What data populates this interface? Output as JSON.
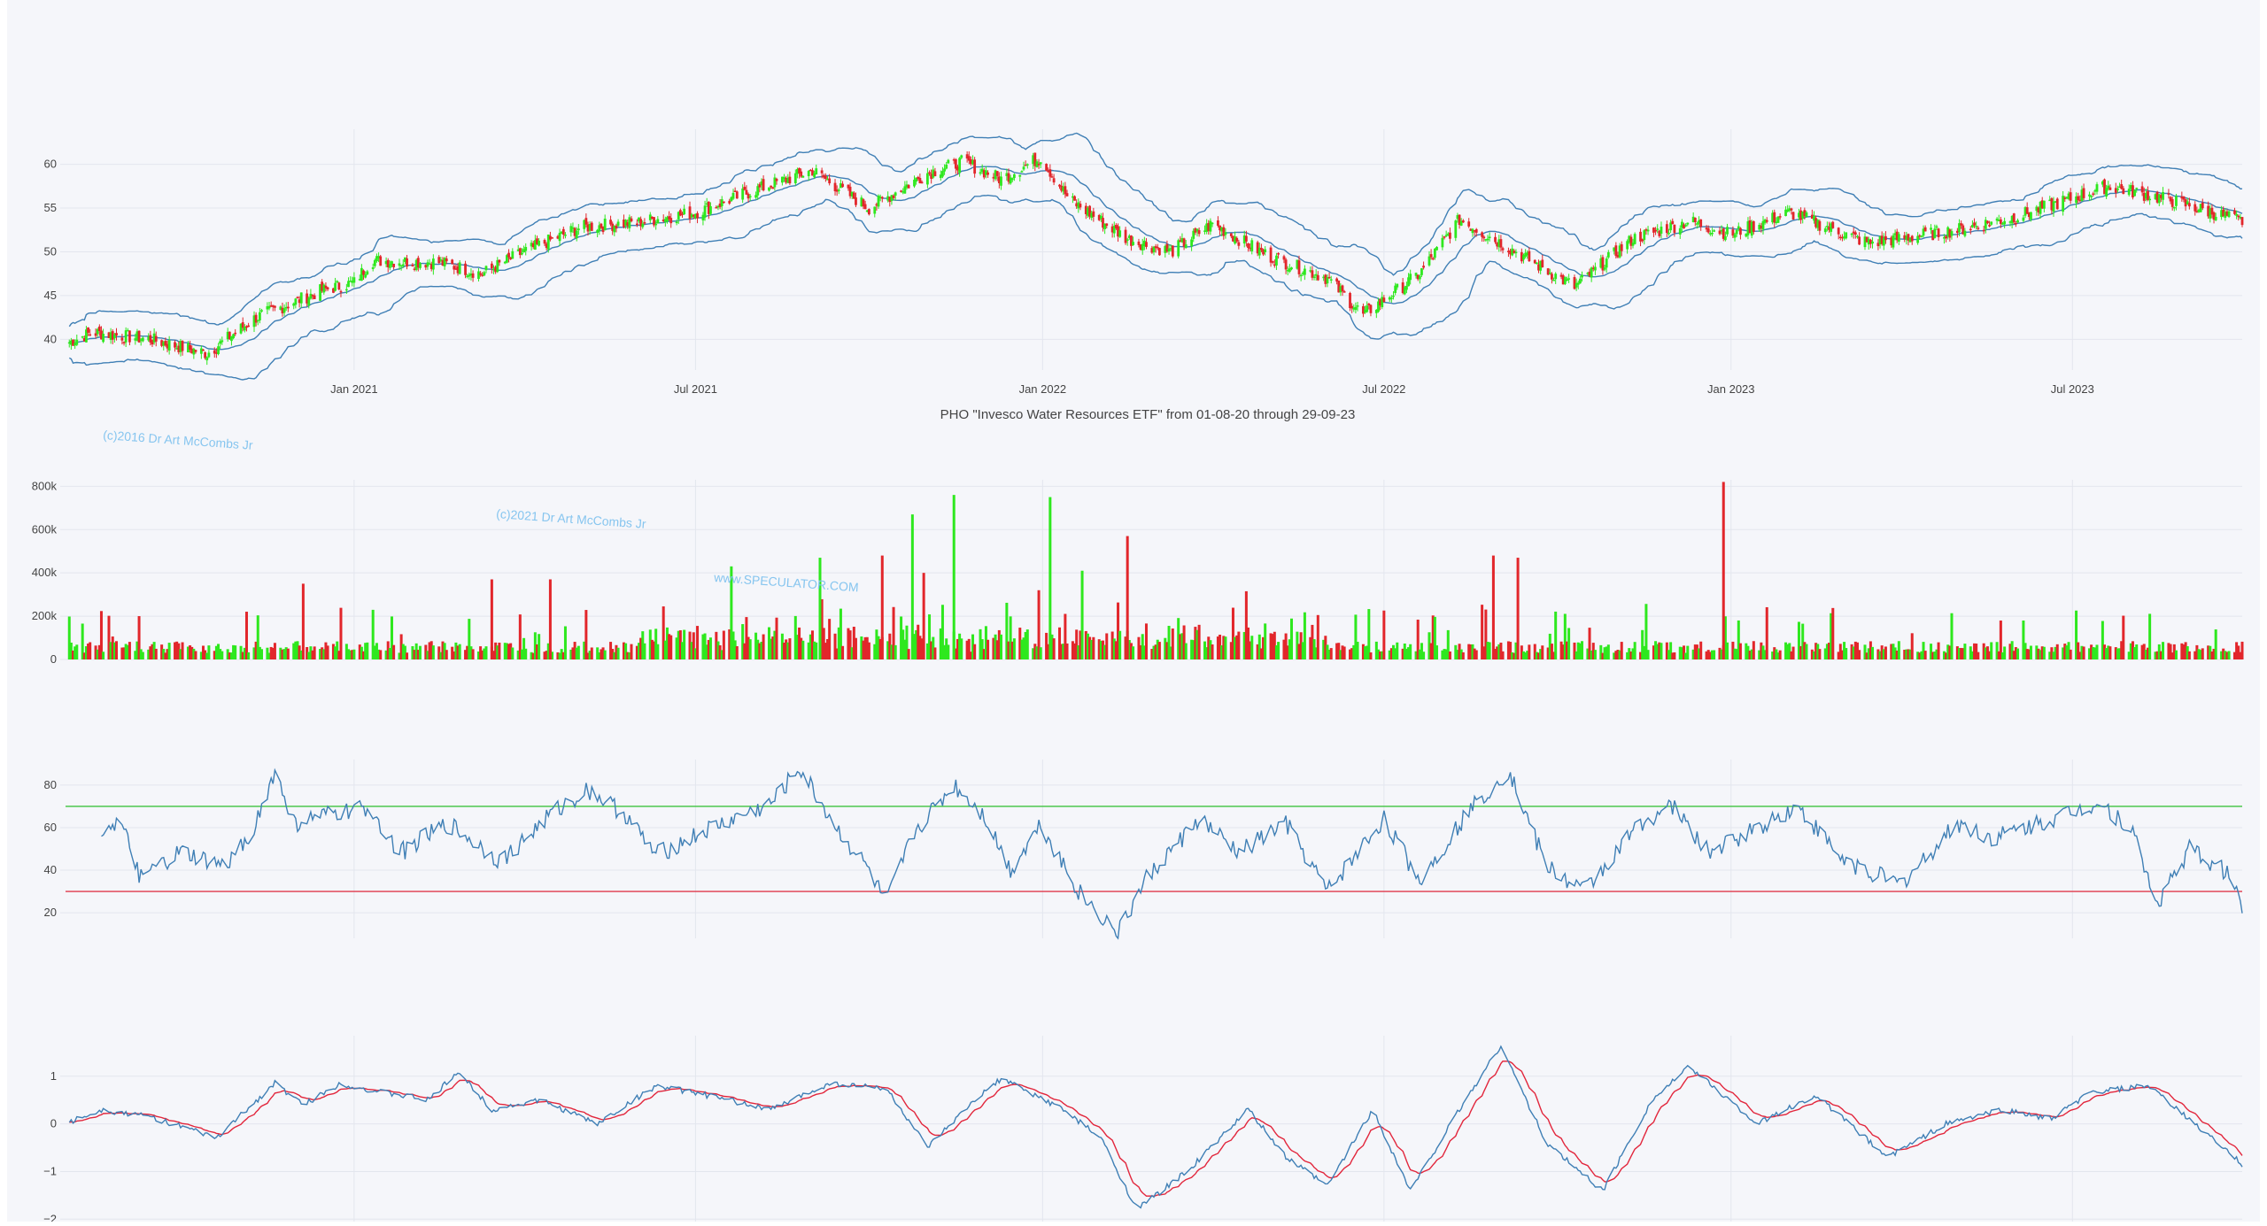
{
  "chart_data": {
    "title": "PHO \"Invesco Water Resources ETF\" from 01-08-20 through 29-09-23",
    "x_ticks": [
      "Jan 2021",
      "Jul 2021",
      "Jan 2022",
      "Jul 2022",
      "Jan 2023",
      "Jul 2023"
    ],
    "x_range": [
      "2020-08-01",
      "2023-09-29"
    ],
    "watermarks": [
      "(c)2016 Dr Art McCombs Jr",
      "(c)2021 Dr Art McCombs Jr",
      "www.SPECULATOR.COM"
    ],
    "colors": {
      "up": "#2ee81e",
      "down": "#e2262b",
      "band": "#3f7fb5",
      "signal": "#e2263c",
      "overbought": "#3ec43e",
      "oversold": "#e0394a"
    },
    "panels": [
      {
        "name": "price",
        "type": "candlestick",
        "overlays": [
          "bollinger-upper",
          "bollinger-middle",
          "bollinger-lower"
        ],
        "y_ticks": [
          "60",
          "55",
          "50",
          "45",
          "40"
        ],
        "y_range": [
          36.5,
          64
        ],
        "close_path": [
          [
            "2020-08-01",
            39.5
          ],
          [
            "2020-08-15",
            40.8
          ],
          [
            "2020-09-15",
            40.0
          ],
          [
            "2020-10-15",
            38.4
          ],
          [
            "2020-11-10",
            42.5
          ],
          [
            "2020-12-15",
            45.6
          ],
          [
            "2021-01-01",
            46.5
          ],
          [
            "2021-01-10",
            49.0
          ],
          [
            "2021-02-15",
            48.8
          ],
          [
            "2021-03-10",
            47.5
          ],
          [
            "2021-04-01",
            50.0
          ],
          [
            "2021-05-01",
            52.8
          ],
          [
            "2021-06-01",
            53.4
          ],
          [
            "2021-07-01",
            54.5
          ],
          [
            "2021-08-01",
            57.0
          ],
          [
            "2021-09-01",
            59.3
          ],
          [
            "2021-10-01",
            55.0
          ],
          [
            "2021-11-01",
            59.0
          ],
          [
            "2021-11-20",
            60.3
          ],
          [
            "2021-12-10",
            58.3
          ],
          [
            "2021-12-31",
            60.8
          ],
          [
            "2022-01-15",
            56.0
          ],
          [
            "2022-02-15",
            51.5
          ],
          [
            "2022-03-10",
            50.0
          ],
          [
            "2022-04-01",
            53.2
          ],
          [
            "2022-05-01",
            49.5
          ],
          [
            "2022-06-01",
            47.0
          ],
          [
            "2022-06-20",
            42.8
          ],
          [
            "2022-07-20",
            47.5
          ],
          [
            "2022-08-10",
            53.7
          ],
          [
            "2022-09-01",
            51.0
          ],
          [
            "2022-10-10",
            46.0
          ],
          [
            "2022-11-10",
            51.5
          ],
          [
            "2022-12-10",
            53.5
          ],
          [
            "2023-01-01",
            52.0
          ],
          [
            "2023-02-01",
            54.5
          ],
          [
            "2023-03-15",
            51.0
          ],
          [
            "2023-05-01",
            52.5
          ],
          [
            "2023-06-01",
            54.0
          ],
          [
            "2023-07-20",
            57.5
          ],
          [
            "2023-08-20",
            56.0
          ],
          [
            "2023-09-29",
            53.5
          ]
        ]
      },
      {
        "name": "volume",
        "type": "bar",
        "y_ticks": [
          "800k",
          "600k",
          "400k",
          "200k",
          "0"
        ],
        "y_range": [
          0,
          830000
        ],
        "spikes": [
          [
            "2021-11-15",
            760000,
            "up"
          ],
          [
            "2021-10-24",
            670000,
            "up"
          ],
          [
            "2022-01-05",
            750000,
            "up"
          ],
          [
            "2022-02-15",
            570000,
            "down"
          ],
          [
            "2022-12-28",
            820000,
            "down"
          ],
          [
            "2021-09-05",
            470000,
            "up"
          ],
          [
            "2021-07-20",
            430000,
            "up"
          ],
          [
            "2021-10-08",
            480000,
            "down"
          ],
          [
            "2021-10-30",
            400000,
            "down"
          ],
          [
            "2021-03-15",
            370000,
            "down"
          ],
          [
            "2022-08-28",
            480000,
            "down"
          ],
          [
            "2022-09-10",
            470000,
            "down"
          ],
          [
            "2021-04-15",
            370000,
            "down"
          ],
          [
            "2020-12-05",
            350000,
            "down"
          ],
          [
            "2022-01-22",
            410000,
            "up"
          ]
        ]
      },
      {
        "name": "rsi",
        "type": "line",
        "y_ticks": [
          "80",
          "60",
          "40",
          "20"
        ],
        "y_range": [
          8,
          92
        ],
        "levels": [
          70,
          30
        ],
        "path": [
          [
            "2020-08-20",
            60
          ],
          [
            "2020-08-30",
            62
          ],
          [
            "2020-09-10",
            36
          ],
          [
            "2020-10-01",
            48
          ],
          [
            "2020-10-25",
            41
          ],
          [
            "2020-11-10",
            62
          ],
          [
            "2020-11-20",
            86
          ],
          [
            "2020-11-30",
            62
          ],
          [
            "2020-12-20",
            66
          ],
          [
            "2021-01-10",
            69
          ],
          [
            "2021-01-25",
            48
          ],
          [
            "2021-02-20",
            62
          ],
          [
            "2021-03-20",
            44
          ],
          [
            "2021-04-15",
            66
          ],
          [
            "2021-05-05",
            78
          ],
          [
            "2021-05-25",
            66
          ],
          [
            "2021-06-10",
            47
          ],
          [
            "2021-07-10",
            60
          ],
          [
            "2021-08-10",
            71
          ],
          [
            "2021-08-25",
            88
          ],
          [
            "2021-09-15",
            58
          ],
          [
            "2021-10-01",
            40
          ],
          [
            "2021-10-10",
            24
          ],
          [
            "2021-10-25",
            58
          ],
          [
            "2021-11-15",
            80
          ],
          [
            "2021-12-01",
            66
          ],
          [
            "2021-12-15",
            40
          ],
          [
            "2021-12-31",
            62
          ],
          [
            "2022-01-20",
            30
          ],
          [
            "2022-02-10",
            10
          ],
          [
            "2022-02-25",
            36
          ],
          [
            "2022-03-25",
            64
          ],
          [
            "2022-04-15",
            48
          ],
          [
            "2022-05-10",
            62
          ],
          [
            "2022-06-01",
            30
          ],
          [
            "2022-07-01",
            64
          ],
          [
            "2022-07-20",
            35
          ],
          [
            "2022-08-15",
            68
          ],
          [
            "2022-09-05",
            87
          ],
          [
            "2022-09-25",
            42
          ],
          [
            "2022-10-15",
            30
          ],
          [
            "2022-11-15",
            63
          ],
          [
            "2022-12-01",
            70
          ],
          [
            "2022-12-20",
            48
          ],
          [
            "2023-01-15",
            60
          ],
          [
            "2023-02-05",
            70
          ],
          [
            "2023-03-01",
            45
          ],
          [
            "2023-04-01",
            33
          ],
          [
            "2023-05-01",
            62
          ],
          [
            "2023-05-20",
            55
          ],
          [
            "2023-06-20",
            64
          ],
          [
            "2023-07-15",
            72
          ],
          [
            "2023-08-01",
            60
          ],
          [
            "2023-08-15",
            24
          ],
          [
            "2023-09-01",
            50
          ],
          [
            "2023-09-22",
            38
          ],
          [
            "2023-09-29",
            24
          ]
        ]
      },
      {
        "name": "oscillator",
        "type": "line",
        "series_count": 2,
        "y_ticks": [
          "1",
          "0",
          "−1",
          "−2"
        ],
        "y_range": [
          -2.05,
          1.85
        ],
        "path": [
          [
            "2020-08-01",
            0.0
          ],
          [
            "2020-08-20",
            0.3
          ],
          [
            "2020-09-15",
            0.15
          ],
          [
            "2020-10-20",
            -0.3
          ],
          [
            "2020-11-20",
            0.85
          ],
          [
            "2020-12-05",
            0.4
          ],
          [
            "2020-12-25",
            0.85
          ],
          [
            "2021-01-10",
            0.7
          ],
          [
            "2021-02-10",
            0.5
          ],
          [
            "2021-02-25",
            1.1
          ],
          [
            "2021-03-15",
            0.3
          ],
          [
            "2021-04-10",
            0.5
          ],
          [
            "2021-05-10",
            0.0
          ],
          [
            "2021-06-10",
            0.8
          ],
          [
            "2021-07-01",
            0.65
          ],
          [
            "2021-08-10",
            0.3
          ],
          [
            "2021-09-10",
            0.85
          ],
          [
            "2021-10-10",
            0.75
          ],
          [
            "2021-11-01",
            -0.5
          ],
          [
            "2021-11-25",
            0.45
          ],
          [
            "2021-12-10",
            0.95
          ],
          [
            "2022-01-10",
            0.35
          ],
          [
            "2022-02-01",
            -0.3
          ],
          [
            "2022-02-20",
            -1.8
          ],
          [
            "2022-03-20",
            -0.95
          ],
          [
            "2022-04-20",
            0.3
          ],
          [
            "2022-05-10",
            -0.7
          ],
          [
            "2022-06-01",
            -1.3
          ],
          [
            "2022-06-25",
            0.3
          ],
          [
            "2022-07-15",
            -1.4
          ],
          [
            "2022-08-10",
            0.3
          ],
          [
            "2022-09-01",
            1.65
          ],
          [
            "2022-09-25",
            -0.4
          ],
          [
            "2022-10-25",
            -1.4
          ],
          [
            "2022-11-20",
            0.5
          ],
          [
            "2022-12-10",
            1.2
          ],
          [
            "2023-01-15",
            0.0
          ],
          [
            "2023-02-15",
            0.6
          ],
          [
            "2023-03-25",
            -0.7
          ],
          [
            "2023-04-25",
            0.0
          ],
          [
            "2023-05-25",
            0.3
          ],
          [
            "2023-06-20",
            0.1
          ],
          [
            "2023-07-10",
            0.65
          ],
          [
            "2023-08-10",
            0.8
          ],
          [
            "2023-09-10",
            -0.2
          ],
          [
            "2023-09-29",
            -0.85
          ]
        ]
      }
    ]
  }
}
